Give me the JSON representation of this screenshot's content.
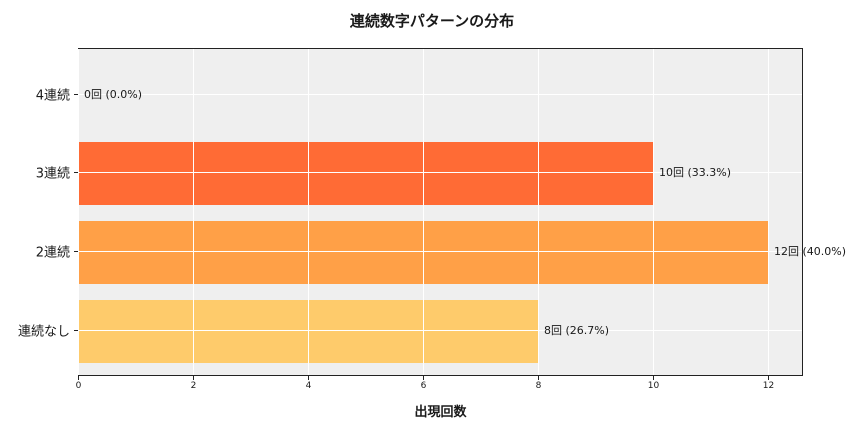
{
  "chart_data": {
    "type": "bar",
    "orientation": "horizontal",
    "title": "連続数字パターンの分布",
    "xlabel": "出現回数",
    "ylabel": "",
    "categories": [
      "4連続",
      "3連続",
      "2連続",
      "連続なし"
    ],
    "values": [
      0,
      10,
      12,
      8
    ],
    "percentages": [
      0.0,
      33.3,
      40.0,
      26.7
    ],
    "data_labels": [
      "0回 (0.0%)",
      "10回 (33.3%)",
      "12回 (40.0%)",
      "8回 (26.7%)"
    ],
    "colors": [
      "#FF6B35",
      "#FF6B35",
      "#FFA047",
      "#FECB6B"
    ],
    "xlim": [
      0,
      12.6
    ],
    "xticks": [
      0,
      2,
      4,
      6,
      8,
      10,
      12
    ],
    "grid": true,
    "legend": null
  },
  "title": "連続数字パターンの分布",
  "xlabel": "出現回数",
  "xticks": [
    "0",
    "2",
    "4",
    "6",
    "8",
    "10",
    "12"
  ],
  "bars": [
    {
      "category": "4連続",
      "label": "0回 (0.0%)"
    },
    {
      "category": "3連続",
      "label": "10回 (33.3%)"
    },
    {
      "category": "2連続",
      "label": "12回 (40.0%)"
    },
    {
      "category": "連続なし",
      "label": "8回 (26.7%)"
    }
  ]
}
